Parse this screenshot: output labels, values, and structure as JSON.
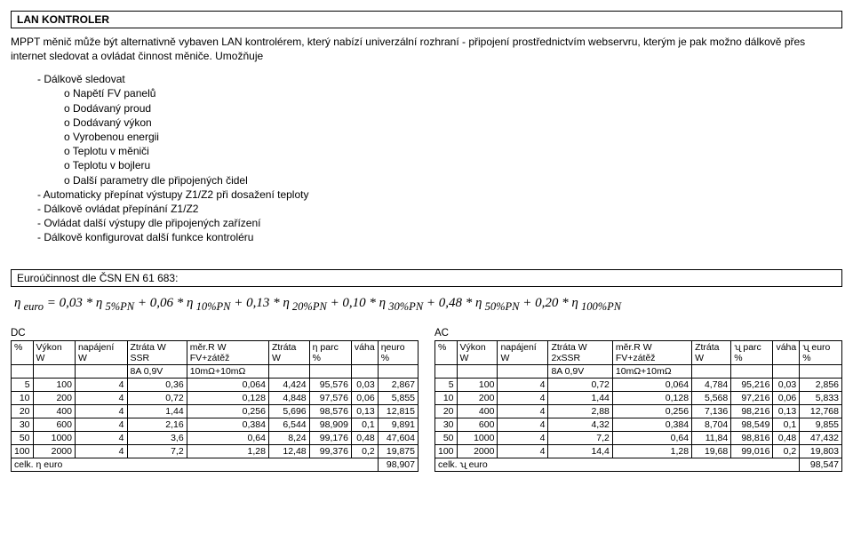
{
  "header": {
    "title": "LAN KONTROLER",
    "intro": "MPPT měnič může být alternativně vybaven LAN kontrolérem, který nabízí univerzální rozhraní - připojení prostřednictvím webservru, kterým je pak možno dálkově přes internet sledovat a ovládat činnost měniče. Umožňuje"
  },
  "bullets": {
    "dash1": "Dálkově sledovat",
    "c1": "Napětí FV panelů",
    "c2": "Dodávaný proud",
    "c3": "Dodávaný výkon",
    "c4": "Vyrobenou energii",
    "c5": "Teplotu v měniči",
    "c6": "Teplotu v bojleru",
    "c7": "Další parametry dle připojených čidel",
    "dash2": "Automaticky přepínat výstupy Z1/Z2 při dosažení teploty",
    "dash3": "Dálkově ovládat přepínání Z1/Z2",
    "dash4": "Ovládat další výstupy dle připojených zařízení",
    "dash5": "Dálkově konfigurovat další funkce kontroléru"
  },
  "euro": {
    "heading": "Euroúčinnost  dle  ČSN EN 61 683:",
    "formula": "η euro = 0,03 * η 5%PN + 0,06 * η 10%PN + 0,13 * η 20%PN + 0,10 * η 30%PN + 0,48 * η 50%PN + 0,20 * η 100%PN"
  },
  "dc": {
    "label": "DC",
    "headers": [
      "%",
      "Výkon W",
      "napájení W",
      "Ztráta W SSR",
      "měr.R W FV+zátěž",
      "Ztráta W",
      "η parc %",
      "váha",
      "ηeuro %"
    ],
    "sub": [
      "",
      "",
      "",
      "8A 0,9V",
      "10mΩ+10mΩ",
      "",
      "",
      "",
      ""
    ],
    "rows": [
      [
        "5",
        "100",
        "4",
        "0,36",
        "0,064",
        "4,424",
        "95,576",
        "0,03",
        "2,867"
      ],
      [
        "10",
        "200",
        "4",
        "0,72",
        "0,128",
        "4,848",
        "97,576",
        "0,06",
        "5,855"
      ],
      [
        "20",
        "400",
        "4",
        "1,44",
        "0,256",
        "5,696",
        "98,576",
        "0,13",
        "12,815"
      ],
      [
        "30",
        "600",
        "4",
        "2,16",
        "0,384",
        "6,544",
        "98,909",
        "0,1",
        "9,891"
      ],
      [
        "50",
        "1000",
        "4",
        "3,6",
        "0,64",
        "8,24",
        "99,176",
        "0,48",
        "47,604"
      ],
      [
        "100",
        "2000",
        "4",
        "7,2",
        "1,28",
        "12,48",
        "99,376",
        "0,2",
        "19,875"
      ]
    ],
    "celk_label": "celk. η     euro",
    "celk_val": "98,907"
  },
  "ac": {
    "label": "AC",
    "headers": [
      "%",
      "Výkon W",
      "napájení W",
      "Ztráta W 2xSSR",
      "měr.R W FV+zátěž",
      "Ztráta W",
      "ʯ parc %",
      "váha",
      "ʯ euro %"
    ],
    "sub": [
      "",
      "",
      "",
      "8A 0,9V",
      "10mΩ+10mΩ",
      "",
      "",
      "",
      ""
    ],
    "rows": [
      [
        "5",
        "100",
        "4",
        "0,72",
        "0,064",
        "4,784",
        "95,216",
        "0,03",
        "2,856"
      ],
      [
        "10",
        "200",
        "4",
        "1,44",
        "0,128",
        "5,568",
        "97,216",
        "0,06",
        "5,833"
      ],
      [
        "20",
        "400",
        "4",
        "2,88",
        "0,256",
        "7,136",
        "98,216",
        "0,13",
        "12,768"
      ],
      [
        "30",
        "600",
        "4",
        "4,32",
        "0,384",
        "8,704",
        "98,549",
        "0,1",
        "9,855"
      ],
      [
        "50",
        "1000",
        "4",
        "7,2",
        "0,64",
        "11,84",
        "98,816",
        "0,48",
        "47,432"
      ],
      [
        "100",
        "2000",
        "4",
        "14,4",
        "1,28",
        "19,68",
        "99,016",
        "0,2",
        "19,803"
      ]
    ],
    "celk_label": "celk. ʯ     euro",
    "celk_val": "98,547"
  }
}
